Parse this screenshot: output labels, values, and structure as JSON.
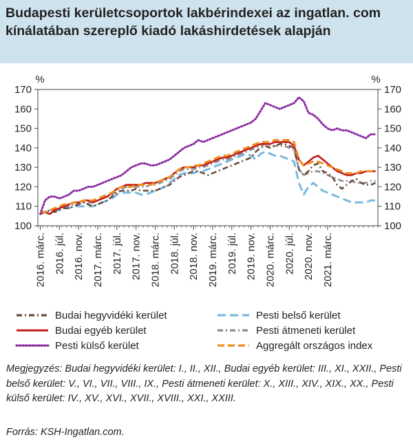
{
  "title": "Budapesti kerületcsoportok lakbérindexei az ingatlan. com kínálatában szereplő kiadó lakáshirdetések alapján",
  "note": "Megjegyzés: Budai hegyvidéki kerület: I., II., XII., Budai egyéb kerület: III., XI., XXII., Pesti belső kerület: V., VI., VII., VIII., IX., Pesti átmeneti kerület: X., XIII., XIV., XIX., XX., Pesti külső kerület: IV., XV., XVI., XVII., XVIII., XXI., XXIII.",
  "source": "Forrás: KSH-Ingatlan.com.",
  "chart_data": {
    "type": "line",
    "y_unit_left": "%",
    "y_unit_right": "%",
    "ylim": [
      100,
      170
    ],
    "yticks": [
      100,
      110,
      120,
      130,
      140,
      150,
      160,
      170
    ],
    "x_start": "2016-03",
    "x_end": "2021-04",
    "x_tick_labels": [
      "2016. márc.",
      "2016. júl.",
      "2016. nov.",
      "2017. márc.",
      "2017. júl.",
      "2017. nov.",
      "2018. márc.",
      "2018. júl.",
      "2018. nov.",
      "2019. márc.",
      "2019. júl.",
      "2019. nov.",
      "2020. márc.",
      "2020. júl.",
      "2020. nov.",
      "2021. márc."
    ],
    "grid": false,
    "legend_position": "bottom",
    "series": [
      {
        "name": "Budai hegyvidéki kerület",
        "color": "#6b4a3a",
        "style": "dashdot",
        "values": [
          106,
          107,
          108,
          107,
          108,
          109,
          109,
          110,
          111,
          112,
          111,
          110,
          111,
          112,
          113,
          115,
          117,
          118,
          118,
          118,
          119,
          118,
          118,
          118,
          118,
          119,
          120,
          121,
          123,
          125,
          126,
          127,
          128,
          128,
          127,
          126,
          127,
          128,
          129,
          130,
          131,
          132,
          133,
          134,
          135,
          138,
          140,
          141,
          140,
          141,
          142,
          142,
          141,
          140,
          129,
          126,
          128,
          131,
          132,
          128,
          127,
          125,
          121,
          119,
          121,
          123,
          124,
          122,
          121,
          121,
          122
        ]
      },
      {
        "name": "Budai egyéb kerület",
        "color": "#c01c1c",
        "style": "solid",
        "values": [
          107,
          107,
          106,
          108,
          109,
          110,
          111,
          112,
          112,
          113,
          113,
          112,
          113,
          114,
          115,
          117,
          119,
          120,
          121,
          121,
          121,
          121,
          122,
          122,
          122,
          123,
          124,
          125,
          127,
          129,
          130,
          130,
          130,
          131,
          131,
          132,
          133,
          134,
          135,
          135,
          136,
          137,
          138,
          139,
          140,
          141,
          142,
          142,
          142,
          143,
          143,
          143,
          143,
          141,
          134,
          131,
          133,
          135,
          136,
          134,
          132,
          130,
          128,
          127,
          126,
          126,
          127,
          127,
          128,
          128,
          128
        ]
      },
      {
        "name": "Pesti külső kerület",
        "color": "#8a2aa0",
        "style": "dotted",
        "values": [
          106,
          113,
          115,
          115,
          114,
          115,
          116,
          118,
          118,
          119,
          120,
          120,
          121,
          122,
          123,
          124,
          125,
          126,
          128,
          130,
          131,
          132,
          132,
          131,
          131,
          132,
          133,
          134,
          136,
          138,
          140,
          141,
          142,
          144,
          143,
          144,
          145,
          146,
          147,
          148,
          149,
          150,
          151,
          152,
          153,
          155,
          159,
          163,
          162,
          161,
          160,
          161,
          162,
          163,
          166,
          164,
          158,
          157,
          155,
          152,
          150,
          149,
          150,
          149,
          149,
          148,
          147,
          146,
          145,
          147,
          147
        ]
      },
      {
        "name": "Pesti belső kerület",
        "color": "#7ab8de",
        "style": "longdash",
        "values": [
          107,
          107,
          107,
          108,
          108,
          109,
          109,
          110,
          110,
          110,
          110,
          110,
          111,
          112,
          113,
          114,
          116,
          117,
          117,
          117,
          117,
          116,
          116,
          117,
          118,
          119,
          120,
          122,
          124,
          126,
          127,
          127,
          127,
          128,
          128,
          129,
          130,
          131,
          132,
          133,
          134,
          135,
          136,
          137,
          136,
          134,
          137,
          138,
          137,
          136,
          136,
          135,
          134,
          133,
          122,
          116,
          120,
          122,
          120,
          118,
          117,
          116,
          115,
          114,
          113,
          112,
          112,
          112,
          112,
          113,
          113
        ]
      },
      {
        "name": "Pesti átmeneti kerület",
        "color": "#8c8c8c",
        "style": "dashdot",
        "values": [
          107,
          107,
          108,
          108,
          109,
          110,
          110,
          111,
          111,
          112,
          112,
          112,
          113,
          114,
          115,
          116,
          118,
          119,
          120,
          120,
          120,
          120,
          120,
          121,
          121,
          122,
          123,
          124,
          126,
          128,
          129,
          129,
          129,
          130,
          130,
          131,
          132,
          133,
          134,
          134,
          135,
          136,
          137,
          138,
          139,
          140,
          141,
          142,
          141,
          141,
          141,
          141,
          140,
          139,
          129,
          126,
          127,
          128,
          128,
          127,
          126,
          125,
          124,
          123,
          123,
          123,
          122,
          122,
          122,
          123,
          123
        ]
      },
      {
        "name": "Aggregált országos index",
        "color": "#f08c1e",
        "style": "dashed",
        "values": [
          107,
          107,
          108,
          109,
          110,
          111,
          111,
          112,
          112,
          113,
          113,
          113,
          114,
          115,
          116,
          117,
          119,
          120,
          120,
          120,
          121,
          121,
          121,
          121,
          122,
          123,
          124,
          125,
          127,
          129,
          130,
          130,
          131,
          131,
          132,
          133,
          134,
          135,
          136,
          136,
          137,
          138,
          139,
          140,
          141,
          142,
          143,
          143,
          143,
          144,
          144,
          144,
          144,
          143,
          134,
          131,
          132,
          133,
          133,
          132,
          131,
          130,
          129,
          128,
          127,
          127,
          127,
          128,
          128,
          128,
          128
        ]
      }
    ]
  }
}
